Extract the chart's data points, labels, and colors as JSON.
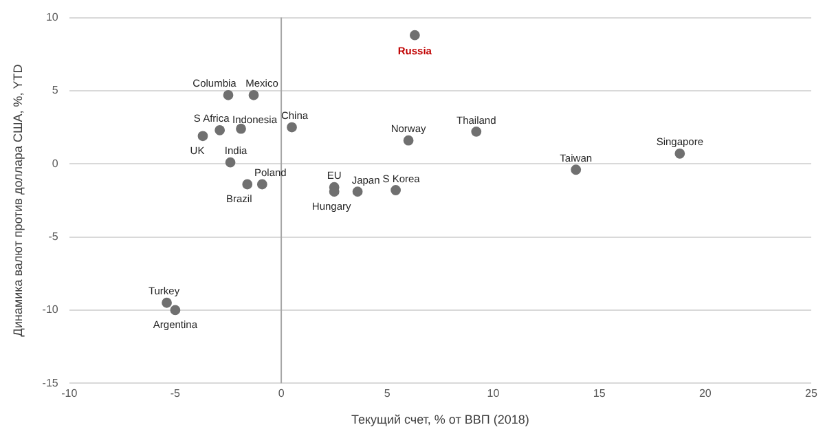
{
  "chart_data": {
    "type": "scatter",
    "xlabel": "Текущий счет, % от ВВП (2018)",
    "ylabel": "Динамика валют против доллара США, %, YTD",
    "x": [
      6.3,
      -2.5,
      -1.3,
      0.5,
      -2.9,
      -1.9,
      -3.7,
      -2.4,
      -1.6,
      -0.9,
      2.5,
      2.5,
      3.6,
      5.4,
      6.0,
      9.2,
      13.9,
      18.8,
      -5.4,
      -5.0
    ],
    "series": [
      {
        "color": "#707070",
        "values": [
          8.8,
          4.7,
          4.7,
          2.5,
          2.3,
          2.4,
          1.9,
          0.1,
          -1.4,
          -1.4,
          -1.6,
          -1.9,
          -1.9,
          -1.8,
          1.6,
          2.2,
          -0.4,
          0.7,
          -9.5,
          -10.0
        ]
      }
    ],
    "annotations": [
      {
        "text": "Russia",
        "x": 6.3,
        "y": 8.8
      },
      {
        "text": "Columbia",
        "x": -2.5,
        "y": 4.7
      },
      {
        "text": "Mexico",
        "x": -1.3,
        "y": 4.7
      },
      {
        "text": "China",
        "x": 0.5,
        "y": 2.5
      },
      {
        "text": "S Africa",
        "x": -2.9,
        "y": 2.3
      },
      {
        "text": "Indonesia",
        "x": -1.9,
        "y": 2.4
      },
      {
        "text": "UK",
        "x": -3.7,
        "y": 1.9
      },
      {
        "text": "India",
        "x": -2.4,
        "y": 0.1
      },
      {
        "text": "Brazil",
        "x": -1.6,
        "y": -1.4
      },
      {
        "text": "Poland",
        "x": -0.9,
        "y": -1.4
      },
      {
        "text": "EU",
        "x": 2.5,
        "y": -1.6
      },
      {
        "text": "Hungary",
        "x": 2.5,
        "y": -1.9
      },
      {
        "text": "Japan",
        "x": 3.6,
        "y": -1.9
      },
      {
        "text": "S Korea",
        "x": 5.4,
        "y": -1.8
      },
      {
        "text": "Norway",
        "x": 6.0,
        "y": 1.6
      },
      {
        "text": "Thailand",
        "x": 9.2,
        "y": 2.2
      },
      {
        "text": "Taiwan",
        "x": 13.9,
        "y": -0.4
      },
      {
        "text": "Singapore",
        "x": 18.8,
        "y": 0.7
      },
      {
        "text": "Turkey",
        "x": -5.4,
        "y": -9.5
      },
      {
        "text": "Argentina",
        "x": -5.0,
        "y": -10.0
      }
    ],
    "xlim": [
      -10,
      25
    ],
    "xticks": [
      -10,
      -5,
      0,
      5,
      10,
      15,
      20,
      25
    ],
    "ylim": [
      -15,
      10
    ],
    "yticks": [
      -15,
      -10,
      -5,
      0,
      5,
      10
    ],
    "ref_lines": [
      {
        "axis": "x",
        "value": 0,
        "color": "#a6a6a6"
      }
    ],
    "grid": "y",
    "legend": false,
    "marker": "circle"
  }
}
